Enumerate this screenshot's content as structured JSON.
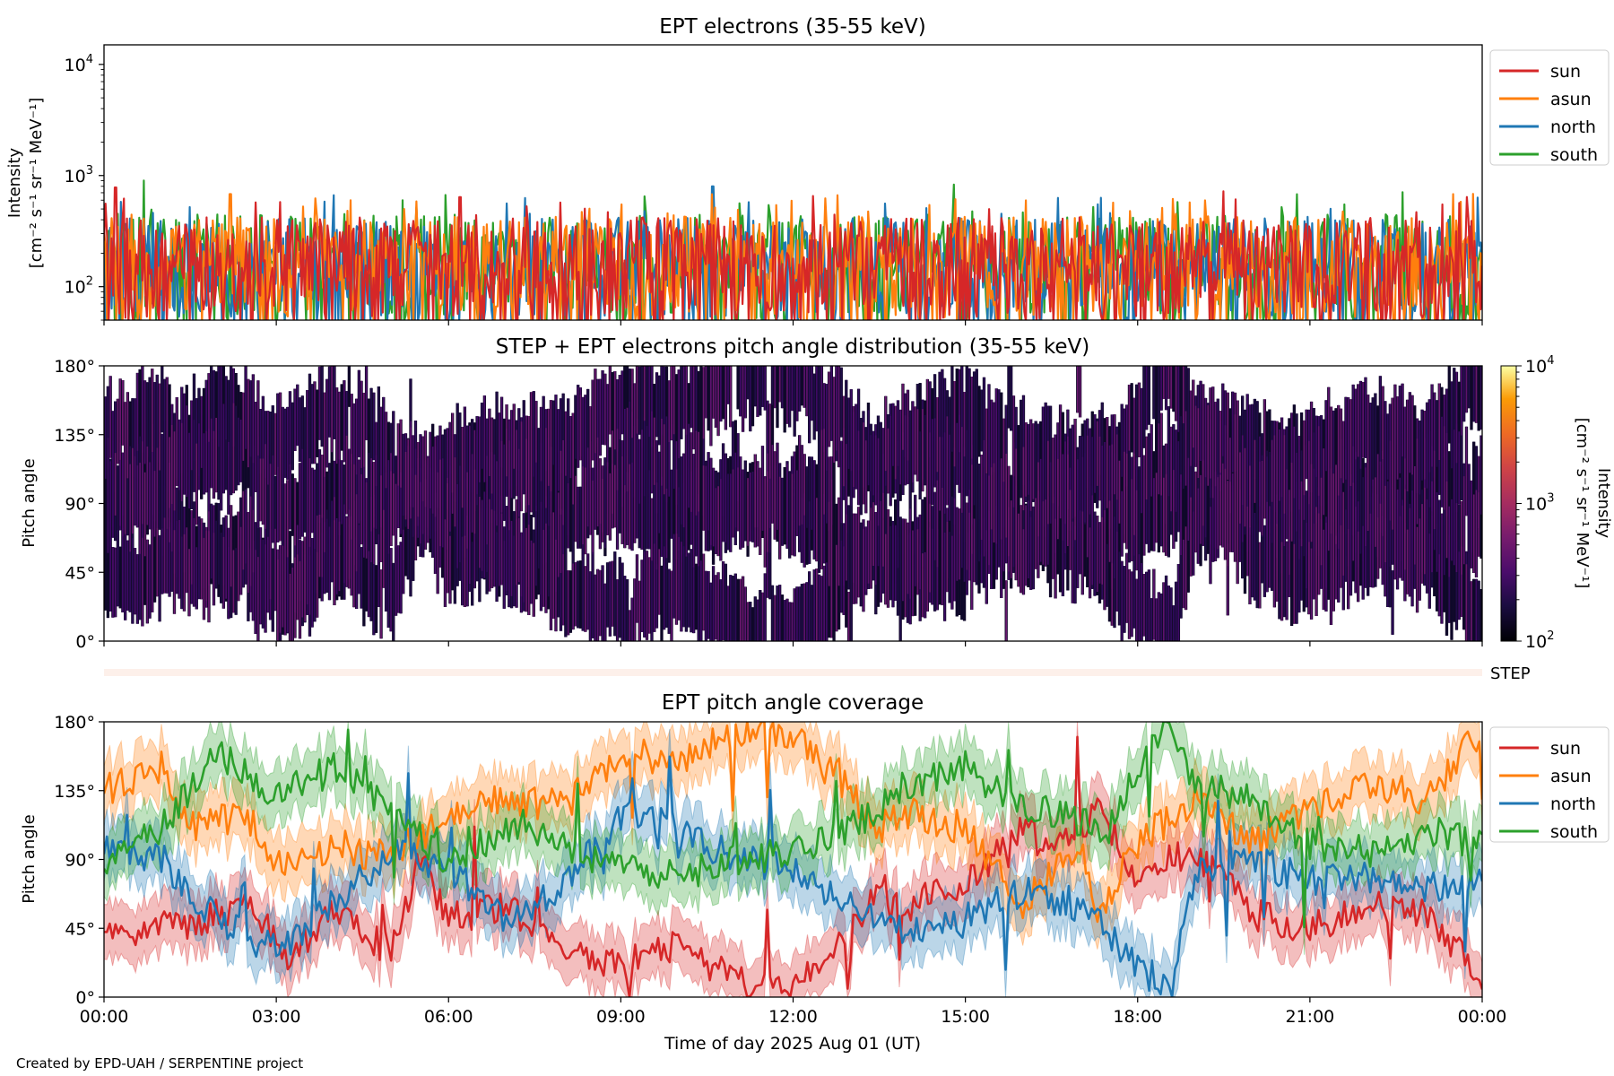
{
  "figure": {
    "credit": "Created by EPD-UAH / SERPENTINE project",
    "xlabel": "Time of day 2025 Aug 01 (UT)",
    "xticks": [
      "00:00",
      "03:00",
      "06:00",
      "09:00",
      "12:00",
      "15:00",
      "18:00",
      "21:00",
      "00:00"
    ],
    "step_label": "STEP"
  },
  "chart_data": [
    {
      "type": "line",
      "title": "EPT electrons (35-55 keV)",
      "ylabel_line1": "Intensity",
      "ylabel_line2": "[cm⁻² s⁻¹ sr⁻¹ MeV⁻¹]",
      "yscale": "log",
      "ylim": [
        50,
        15000
      ],
      "yticks": [
        {
          "base": "10",
          "exp": "2",
          "value": 100
        },
        {
          "base": "10",
          "exp": "3",
          "value": 1000
        },
        {
          "base": "10",
          "exp": "4",
          "value": 10000
        }
      ],
      "xlim_hours": [
        0,
        24
      ],
      "legend_position": "upper-right-outside",
      "series": [
        {
          "name": "south",
          "color": "#2ca02c",
          "typical_min": 50,
          "typical_max": 450,
          "median": 170,
          "spikes": [
            [
              0.7,
              900
            ],
            [
              14.8,
              830
            ],
            [
              5.2,
              600
            ],
            [
              20.5,
              520
            ]
          ]
        },
        {
          "name": "north",
          "color": "#1f77b4",
          "typical_min": 50,
          "typical_max": 420,
          "median": 160,
          "spikes": [
            [
              10.6,
              800
            ],
            [
              1.5,
              520
            ],
            [
              17.3,
              550
            ]
          ]
        },
        {
          "name": "asun",
          "color": "#ff7f0e",
          "typical_min": 50,
          "typical_max": 430,
          "median": 170,
          "spikes": [
            [
              2.2,
              680
            ],
            [
              23.5,
              680
            ],
            [
              4.3,
              600
            ]
          ]
        },
        {
          "name": "sun",
          "color": "#d62728",
          "typical_min": 50,
          "typical_max": 420,
          "median": 160,
          "spikes": [
            [
              0.2,
              780
            ],
            [
              19.5,
              720
            ],
            [
              6.2,
              640
            ]
          ]
        }
      ]
    },
    {
      "type": "heatmap",
      "title": "STEP + EPT electrons pitch angle distribution (35-55 keV)",
      "ylabel": "Pitch angle",
      "ylim": [
        0,
        180
      ],
      "yticks": [
        "0°",
        "45°",
        "90°",
        "135°",
        "180°"
      ],
      "xlim_hours": [
        0,
        24
      ],
      "colorbar": {
        "scale": "log",
        "range": [
          100,
          10000
        ],
        "colormap": "inferno",
        "label_line1": "Intensity",
        "label_line2": "[cm⁻² s⁻¹ sr⁻¹ MeV⁻¹]",
        "ticks": [
          {
            "base": "10",
            "exp": "2"
          },
          {
            "base": "10",
            "exp": "3"
          },
          {
            "base": "10",
            "exp": "4"
          }
        ]
      },
      "typical_intensity": [
        100,
        300
      ]
    },
    {
      "type": "line",
      "title": "EPT pitch angle coverage",
      "ylabel": "Pitch angle",
      "ylim": [
        0,
        180
      ],
      "yticks": [
        "0°",
        "45°",
        "90°",
        "135°",
        "180°"
      ],
      "xlim_hours": [
        0,
        24
      ],
      "legend_position": "upper-right-outside",
      "band_halfwidth_deg": 18,
      "series": [
        {
          "name": "sun",
          "color": "#d62728",
          "keyframes": [
            [
              0,
              45
            ],
            [
              1.5,
              45
            ],
            [
              2.5,
              65
            ],
            [
              3.2,
              25
            ],
            [
              4,
              55
            ],
            [
              5,
              30
            ],
            [
              5.5,
              90
            ],
            [
              6,
              50
            ],
            [
              7,
              60
            ],
            [
              8,
              35
            ],
            [
              9,
              20
            ],
            [
              10,
              35
            ],
            [
              11,
              10
            ],
            [
              12,
              5
            ],
            [
              13,
              40
            ],
            [
              13.5,
              75
            ],
            [
              14,
              60
            ],
            [
              15,
              75
            ],
            [
              16,
              110
            ],
            [
              16.5,
              95
            ],
            [
              17.3,
              120
            ],
            [
              18,
              80
            ],
            [
              19,
              95
            ],
            [
              20,
              55
            ],
            [
              21,
              45
            ],
            [
              22,
              60
            ],
            [
              23,
              55
            ],
            [
              24,
              10
            ]
          ]
        },
        {
          "name": "asun",
          "color": "#ff7f0e",
          "keyframes": [
            [
              0,
              135
            ],
            [
              1,
              150
            ],
            [
              1.5,
              110
            ],
            [
              2.5,
              120
            ],
            [
              3,
              85
            ],
            [
              4,
              100
            ],
            [
              5,
              90
            ],
            [
              6,
              120
            ],
            [
              7,
              130
            ],
            [
              8,
              125
            ],
            [
              9,
              160
            ],
            [
              10,
              155
            ],
            [
              11,
              175
            ],
            [
              12,
              170
            ],
            [
              13,
              135
            ],
            [
              13.5,
              110
            ],
            [
              14,
              120
            ],
            [
              15,
              110
            ],
            [
              16,
              60
            ],
            [
              17,
              100
            ],
            [
              17.3,
              55
            ],
            [
              18,
              100
            ],
            [
              19,
              130
            ],
            [
              20,
              100
            ],
            [
              21,
              125
            ],
            [
              22,
              140
            ],
            [
              23,
              130
            ],
            [
              24,
              175
            ]
          ]
        },
        {
          "name": "north",
          "color": "#1f77b4",
          "keyframes": [
            [
              0,
              95
            ],
            [
              1,
              90
            ],
            [
              2,
              50
            ],
            [
              3,
              30
            ],
            [
              4,
              60
            ],
            [
              5,
              95
            ],
            [
              6,
              85
            ],
            [
              7,
              50
            ],
            [
              8,
              70
            ],
            [
              9,
              120
            ],
            [
              10,
              110
            ],
            [
              11,
              90
            ],
            [
              12,
              85
            ],
            [
              13,
              60
            ],
            [
              14,
              40
            ],
            [
              15,
              50
            ],
            [
              16,
              70
            ],
            [
              17,
              60
            ],
            [
              18,
              20
            ],
            [
              18.6,
              5
            ],
            [
              19,
              80
            ],
            [
              20,
              90
            ],
            [
              21,
              75
            ],
            [
              22,
              80
            ],
            [
              23,
              70
            ],
            [
              24,
              80
            ]
          ]
        },
        {
          "name": "south",
          "color": "#2ca02c",
          "keyframes": [
            [
              0,
              85
            ],
            [
              1,
              110
            ],
            [
              2,
              160
            ],
            [
              3,
              130
            ],
            [
              4,
              150
            ],
            [
              5,
              120
            ],
            [
              6,
              90
            ],
            [
              7,
              110
            ],
            [
              8,
              100
            ],
            [
              9,
              85
            ],
            [
              10,
              80
            ],
            [
              11,
              90
            ],
            [
              12,
              95
            ],
            [
              13,
              110
            ],
            [
              14,
              140
            ],
            [
              15,
              150
            ],
            [
              16,
              125
            ],
            [
              17,
              115
            ],
            [
              17.5,
              110
            ],
            [
              18,
              150
            ],
            [
              18.5,
              180
            ],
            [
              19,
              140
            ],
            [
              20,
              130
            ],
            [
              21,
              100
            ],
            [
              22,
              95
            ],
            [
              23,
              110
            ],
            [
              24,
              100
            ]
          ]
        }
      ]
    }
  ]
}
